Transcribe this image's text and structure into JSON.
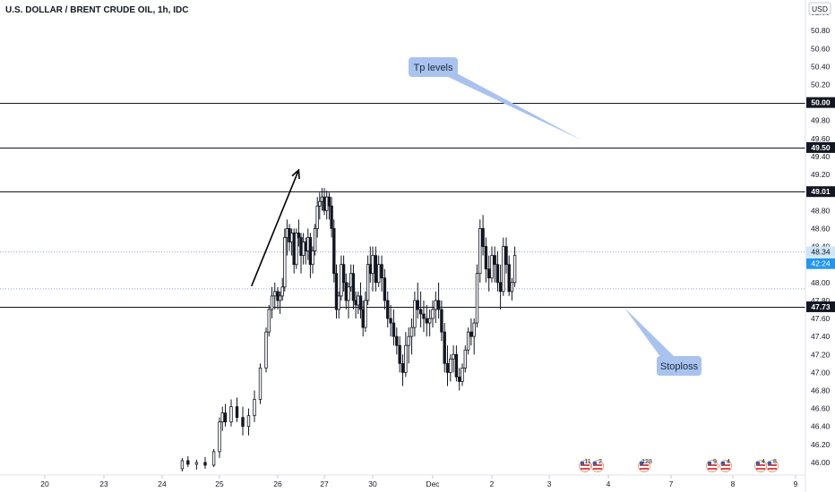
{
  "chart_data": {
    "type": "candlestick",
    "title": "U.S. DOLLAR / BRENT CRUDE OIL, 1h, IDC",
    "currency": "USD",
    "ylim": [
      45.94,
      51.06
    ],
    "y_ticks": [
      "51.00",
      "50.80",
      "50.60",
      "50.40",
      "50.20",
      "49.80",
      "49.60",
      "49.40",
      "49.20",
      "48.80",
      "48.60",
      "48.40",
      "48.00",
      "47.80",
      "47.60",
      "47.40",
      "47.20",
      "47.00",
      "46.80",
      "46.60",
      "46.40",
      "46.20",
      "46.00"
    ],
    "x_ticks": [
      "20",
      "23",
      "24",
      "25",
      "26",
      "27",
      "30",
      "Dec",
      "2",
      "3",
      "4",
      "7",
      "8",
      "9"
    ],
    "horizontal_levels": [
      {
        "value": 50.0,
        "label": "50.00"
      },
      {
        "value": 49.5,
        "label": "49.50"
      },
      {
        "value": 49.01,
        "label": "49.01"
      },
      {
        "value": 47.73,
        "label": "47.73"
      }
    ],
    "dotted_levels": [
      48.34,
      47.93
    ],
    "price_badges": [
      {
        "label": "48.34",
        "value": 48.34,
        "color": "#cfe6f7",
        "text_color": "#131722"
      },
      {
        "label": "42:24",
        "value": 48.21,
        "color": "#2196f3",
        "text_color": "#ffffff"
      }
    ],
    "annotations": [
      {
        "text": "Tp levels"
      },
      {
        "text": "Stoploss"
      }
    ],
    "arrow": {
      "from": [
        3.55,
        47.96
      ],
      "to": [
        4.45,
        49.25
      ]
    },
    "events": [
      {
        "label": "11"
      },
      {
        "label": "2"
      },
      {
        "label": "128"
      },
      {
        "label": "9"
      },
      {
        "label": "4"
      },
      {
        "label": "4"
      },
      {
        "label": "8"
      }
    ],
    "colors": {
      "candle": "#131722",
      "callout": "#a9c3ee",
      "line": "#131722",
      "dotted": "#90a4c4"
    },
    "series": [
      {
        "name": "",
        "ohlc": [
          [
            2.35,
            45.93,
            46.05,
            45.9,
            46.02
          ],
          [
            2.45,
            46.02,
            46.07,
            45.95,
            45.98
          ],
          [
            2.6,
            45.98,
            46.03,
            45.92,
            46.0
          ],
          [
            2.75,
            46.0,
            46.06,
            45.93,
            45.97
          ],
          [
            2.9,
            45.97,
            46.15,
            45.95,
            46.12
          ],
          [
            3.0,
            46.12,
            46.5,
            46.05,
            46.45
          ],
          [
            3.05,
            46.45,
            46.62,
            46.35,
            46.55
          ],
          [
            3.1,
            46.55,
            46.65,
            46.4,
            46.45
          ],
          [
            3.2,
            46.45,
            46.7,
            46.4,
            46.62
          ],
          [
            3.3,
            46.62,
            46.72,
            46.45,
            46.5
          ],
          [
            3.4,
            46.5,
            46.62,
            46.3,
            46.4
          ],
          [
            3.5,
            46.4,
            46.6,
            46.3,
            46.52
          ],
          [
            3.6,
            46.52,
            46.8,
            46.45,
            46.7
          ],
          [
            3.7,
            46.7,
            47.1,
            46.65,
            47.05
          ],
          [
            3.8,
            47.05,
            47.5,
            47.0,
            47.45
          ],
          [
            3.85,
            47.45,
            47.75,
            47.4,
            47.7
          ],
          [
            3.9,
            47.7,
            47.95,
            47.6,
            47.85
          ],
          [
            3.95,
            47.85,
            48.0,
            47.7,
            47.9
          ],
          [
            4.0,
            47.9,
            47.95,
            47.7,
            47.8
          ],
          [
            4.05,
            47.8,
            47.9,
            47.65,
            47.85
          ],
          [
            4.1,
            47.85,
            48.05,
            47.8,
            47.95
          ],
          [
            4.15,
            47.95,
            48.6,
            47.9,
            48.5
          ],
          [
            4.2,
            48.5,
            48.7,
            48.3,
            48.6
          ],
          [
            4.25,
            48.6,
            48.65,
            48.35,
            48.45
          ],
          [
            4.3,
            48.45,
            48.6,
            48.3,
            48.55
          ],
          [
            4.35,
            48.55,
            48.6,
            48.1,
            48.2
          ],
          [
            4.4,
            48.2,
            48.6,
            48.15,
            48.55
          ],
          [
            4.45,
            48.55,
            48.7,
            48.4,
            48.5
          ],
          [
            4.5,
            48.5,
            48.55,
            48.1,
            48.3
          ],
          [
            4.55,
            48.3,
            48.55,
            48.2,
            48.45
          ],
          [
            4.6,
            48.45,
            48.5,
            48.2,
            48.35
          ],
          [
            4.65,
            48.35,
            48.6,
            48.25,
            48.5
          ],
          [
            4.7,
            48.5,
            48.55,
            48.05,
            48.2
          ],
          [
            4.75,
            48.2,
            48.4,
            48.1,
            48.35
          ],
          [
            4.8,
            48.35,
            48.65,
            48.3,
            48.6
          ],
          [
            4.85,
            48.6,
            48.95,
            48.5,
            48.85
          ],
          [
            4.9,
            48.85,
            49.0,
            48.7,
            48.9
          ],
          [
            4.95,
            48.9,
            49.05,
            48.8,
            48.95
          ],
          [
            5.0,
            48.95,
            49.05,
            48.75,
            48.8
          ],
          [
            5.05,
            48.8,
            49.02,
            48.7,
            48.95
          ],
          [
            5.1,
            48.95,
            49.0,
            48.7,
            48.85
          ],
          [
            5.15,
            48.85,
            48.95,
            48.5,
            48.6
          ],
          [
            5.2,
            48.6,
            48.7,
            48.0,
            48.1
          ],
          [
            5.25,
            48.1,
            48.2,
            47.6,
            47.7
          ],
          [
            5.3,
            47.7,
            47.9,
            47.6,
            47.85
          ],
          [
            5.35,
            47.85,
            48.3,
            47.8,
            48.2
          ],
          [
            5.4,
            48.2,
            48.3,
            47.9,
            48.0
          ],
          [
            5.45,
            48.0,
            48.1,
            47.7,
            47.8
          ],
          [
            5.5,
            47.8,
            48.0,
            47.6,
            47.95
          ],
          [
            5.55,
            47.95,
            48.2,
            47.9,
            48.1
          ],
          [
            5.6,
            48.1,
            48.2,
            47.7,
            47.8
          ],
          [
            5.65,
            47.8,
            47.9,
            47.6,
            47.75
          ],
          [
            5.7,
            47.75,
            47.9,
            47.65,
            47.85
          ],
          [
            5.75,
            47.85,
            48.0,
            47.6,
            47.7
          ],
          [
            5.8,
            47.7,
            47.8,
            47.4,
            47.5
          ],
          [
            5.85,
            47.5,
            47.9,
            47.45,
            47.8
          ],
          [
            5.9,
            47.8,
            48.3,
            47.75,
            48.2
          ],
          [
            5.95,
            48.2,
            48.4,
            48.0,
            48.1
          ],
          [
            6.0,
            48.1,
            48.4,
            47.9,
            48.3
          ],
          [
            6.05,
            48.3,
            48.4,
            47.9,
            48.0
          ],
          [
            6.1,
            48.0,
            48.3,
            47.95,
            48.2
          ],
          [
            6.15,
            48.2,
            48.3,
            47.9,
            48.05
          ],
          [
            6.2,
            48.05,
            48.15,
            47.7,
            47.8
          ],
          [
            6.25,
            47.8,
            47.9,
            47.5,
            47.6
          ],
          [
            6.3,
            47.6,
            47.75,
            47.4,
            47.55
          ],
          [
            6.35,
            47.55,
            47.7,
            47.3,
            47.4
          ],
          [
            6.4,
            47.4,
            47.5,
            47.2,
            47.3
          ],
          [
            6.45,
            47.3,
            47.4,
            47.0,
            47.1
          ],
          [
            6.5,
            47.1,
            47.2,
            46.85,
            47.0
          ],
          [
            6.55,
            47.0,
            47.45,
            46.95,
            47.3
          ],
          [
            6.6,
            47.3,
            47.5,
            47.1,
            47.4
          ],
          [
            6.65,
            47.4,
            47.6,
            47.2,
            47.5
          ],
          [
            6.7,
            47.5,
            47.9,
            47.4,
            47.8
          ],
          [
            6.75,
            47.8,
            48.0,
            47.6,
            47.7
          ],
          [
            6.8,
            47.7,
            47.9,
            47.5,
            47.65
          ],
          [
            6.85,
            47.65,
            47.8,
            47.45,
            47.6
          ],
          [
            6.9,
            47.6,
            47.75,
            47.4,
            47.55
          ],
          [
            6.95,
            47.55,
            47.7,
            47.4,
            47.6
          ],
          [
            7.0,
            47.6,
            47.8,
            47.5,
            47.7
          ],
          [
            7.05,
            47.7,
            47.9,
            47.55,
            47.8
          ],
          [
            7.1,
            47.8,
            48.0,
            47.6,
            47.7
          ],
          [
            7.15,
            47.7,
            47.8,
            47.35,
            47.45
          ],
          [
            7.2,
            47.45,
            47.55,
            47.0,
            47.1
          ],
          [
            7.25,
            47.1,
            47.3,
            46.85,
            47.0
          ],
          [
            7.3,
            47.0,
            47.2,
            46.9,
            47.15
          ],
          [
            7.35,
            47.15,
            47.3,
            47.0,
            47.2
          ],
          [
            7.4,
            47.2,
            47.3,
            46.9,
            46.95
          ],
          [
            7.45,
            46.95,
            47.05,
            46.8,
            46.9
          ],
          [
            7.5,
            46.9,
            47.1,
            46.85,
            47.05
          ],
          [
            7.55,
            47.05,
            47.3,
            47.0,
            47.25
          ],
          [
            7.6,
            47.25,
            47.5,
            47.2,
            47.45
          ],
          [
            7.65,
            47.45,
            47.6,
            47.3,
            47.4
          ],
          [
            7.7,
            47.4,
            47.6,
            47.2,
            47.55
          ],
          [
            7.75,
            47.55,
            48.2,
            47.5,
            48.1
          ],
          [
            7.8,
            48.1,
            48.7,
            48.0,
            48.6
          ],
          [
            7.85,
            48.6,
            48.75,
            48.3,
            48.4
          ],
          [
            7.9,
            48.4,
            48.5,
            48.0,
            48.15
          ],
          [
            7.95,
            48.15,
            48.3,
            47.9,
            48.05
          ],
          [
            8.0,
            48.05,
            48.4,
            48.0,
            48.3
          ],
          [
            8.05,
            48.3,
            48.4,
            48.0,
            48.2
          ],
          [
            8.1,
            48.2,
            48.35,
            47.9,
            48.0
          ],
          [
            8.15,
            48.0,
            48.2,
            47.7,
            47.9
          ],
          [
            8.2,
            47.9,
            48.5,
            47.85,
            48.4
          ],
          [
            8.25,
            48.4,
            48.5,
            48.1,
            48.2
          ],
          [
            8.3,
            48.2,
            48.3,
            47.85,
            47.9
          ],
          [
            8.35,
            47.9,
            48.05,
            47.8,
            48.0
          ],
          [
            8.4,
            48.0,
            48.4,
            47.95,
            48.3
          ]
        ]
      }
    ]
  }
}
